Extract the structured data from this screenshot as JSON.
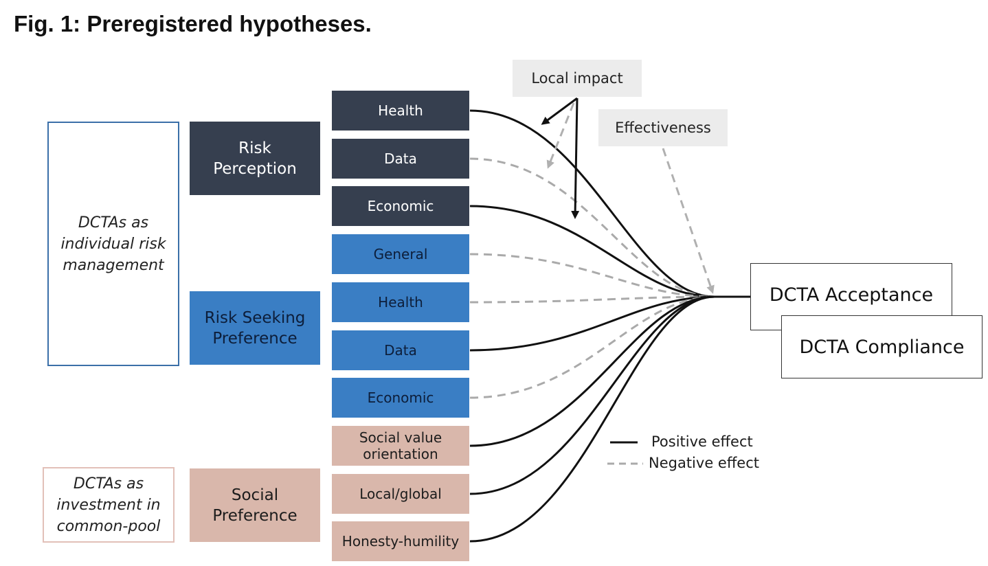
{
  "title": "Fig. 1: Preregistered hypotheses.",
  "frames": {
    "individual": "DCTAs as\nindividual risk\nmanagement",
    "common_pool": "DCTAs as\ninvestment in\ncommon-pool"
  },
  "categories": {
    "risk_perception": "Risk\nPerception",
    "risk_seeking": "Risk Seeking\nPreference",
    "social": "Social\nPreference"
  },
  "items": [
    {
      "label": "Health",
      "group": "risk_perception",
      "effect": "positive"
    },
    {
      "label": "Data",
      "group": "risk_perception",
      "effect": "negative"
    },
    {
      "label": "Economic",
      "group": "risk_perception",
      "effect": "positive"
    },
    {
      "label": "General",
      "group": "risk_seeking",
      "effect": "negative"
    },
    {
      "label": "Health",
      "group": "risk_seeking",
      "effect": "negative"
    },
    {
      "label": "Data",
      "group": "risk_seeking",
      "effect": "positive"
    },
    {
      "label": "Economic",
      "group": "risk_seeking",
      "effect": "negative"
    },
    {
      "label": "Social value\norientation",
      "group": "social",
      "effect": "positive"
    },
    {
      "label": "Local/global",
      "group": "social",
      "effect": "positive"
    },
    {
      "label": "Honesty-humility",
      "group": "social",
      "effect": "positive"
    }
  ],
  "moderators": {
    "local_impact": "Local impact",
    "effectiveness": "Effectiveness"
  },
  "outcomes": {
    "acceptance": "DCTA Acceptance",
    "compliance": "DCTA Compliance"
  },
  "legend": {
    "positive": "Positive effect",
    "negative": "Negative effect"
  },
  "colors": {
    "risk_perception": "#363f4f",
    "risk_seeking": "#3a7ec4",
    "social": "#d9b7ab",
    "moderator": "#ececec",
    "positive_line": "#111111",
    "negative_line": "#aaaaaa"
  }
}
